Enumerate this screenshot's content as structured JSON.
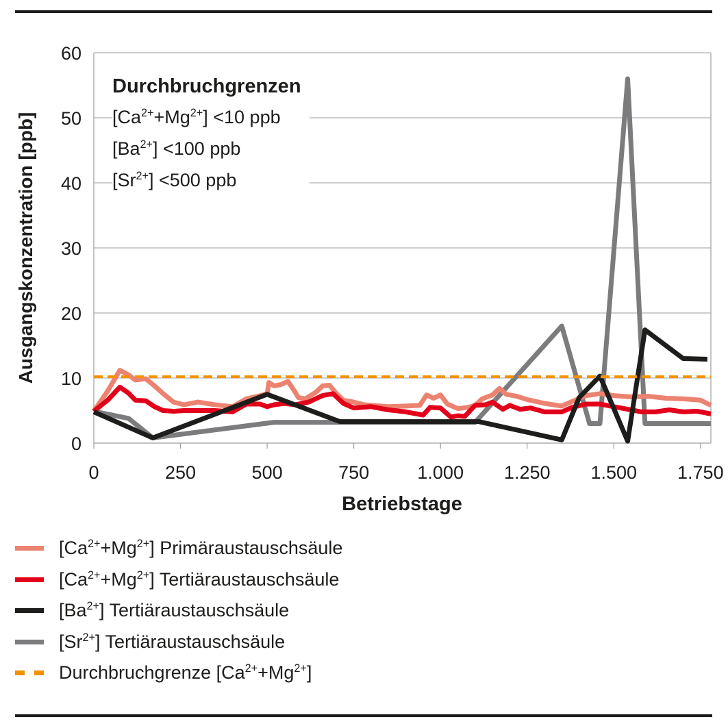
{
  "chart_data": {
    "type": "line",
    "xlabel": "Betriebstage",
    "ylabel": "Ausgangskonzentration [ppb]",
    "xlim": [
      0,
      1780
    ],
    "ylim": [
      0,
      60
    ],
    "x_ticks": [
      0,
      250,
      500,
      750,
      1000,
      1250,
      1500,
      1750
    ],
    "x_tick_labels": [
      "0",
      "250",
      "500",
      "750",
      "1.000",
      "1.250",
      "1.500",
      "1.750"
    ],
    "y_ticks": [
      0,
      10,
      20,
      30,
      40,
      50,
      60
    ],
    "y_tick_labels": [
      "0",
      "10",
      "20",
      "30",
      "40",
      "50",
      "60"
    ],
    "grid": "horizontal",
    "annotation": {
      "title": "Durchbruchgrenzen",
      "lines": [
        {
          "pre": "[Ca",
          "sup1": "2+",
          "mid": "+Mg",
          "sup2": "2+",
          "post": "] <10 ppb"
        },
        {
          "pre": "[Ba",
          "sup1": "2+",
          "mid": "",
          "sup2": "",
          "post": "] <100 ppb"
        },
        {
          "pre": "[Sr",
          "sup1": "2+",
          "mid": "",
          "sup2": "",
          "post": "] <500 ppb"
        }
      ]
    },
    "legend_position": "bottom",
    "series": [
      {
        "name": "[Ca2+ +Mg2+] Primäraustauschsäule",
        "legend": {
          "pre": "[Ca",
          "sup1": "2+",
          "mid": "+Mg",
          "sup2": "2+",
          "post": "] Primäraustauschsäule"
        },
        "color": "#ec8270",
        "style": "solid",
        "x": [
          0,
          40,
          75,
          100,
          120,
          150,
          175,
          200,
          230,
          260,
          300,
          350,
          400,
          440,
          480,
          500,
          505,
          520,
          540,
          560,
          580,
          590,
          610,
          640,
          660,
          680,
          700,
          720,
          750,
          780,
          800,
          850,
          900,
          940,
          960,
          980,
          1000,
          1020,
          1050,
          1080,
          1100,
          1120,
          1150,
          1170,
          1190,
          1220,
          1250,
          1300,
          1350,
          1380,
          1420,
          1460,
          1500,
          1550,
          1600,
          1650,
          1700,
          1750,
          1780
        ],
        "y": [
          4.9,
          8.0,
          11.2,
          10.5,
          9.7,
          9.9,
          8.8,
          7.6,
          6.3,
          5.9,
          6.3,
          5.9,
          5.6,
          6.8,
          7.3,
          7.6,
          9.3,
          8.8,
          9.0,
          9.5,
          7.9,
          7.0,
          6.8,
          7.8,
          8.8,
          8.9,
          7.6,
          6.6,
          6.3,
          5.9,
          5.8,
          5.6,
          5.7,
          5.8,
          7.4,
          6.9,
          7.4,
          6.0,
          5.3,
          5.5,
          5.8,
          6.8,
          7.4,
          8.4,
          7.5,
          7.2,
          6.7,
          6.1,
          5.7,
          6.4,
          7.3,
          7.6,
          7.3,
          7.1,
          7.2,
          6.9,
          6.8,
          6.6,
          5.8
        ]
      },
      {
        "name": "[Ca2+ +Mg2+] Tertiäraustauschsäule",
        "legend": {
          "pre": "[Ca",
          "sup1": "2+",
          "mid": "+Mg",
          "sup2": "2+",
          "post": "] Tertiäraustauschsäule"
        },
        "color": "#e2001a",
        "style": "solid",
        "x": [
          0,
          40,
          75,
          100,
          120,
          150,
          175,
          200,
          230,
          260,
          300,
          350,
          400,
          440,
          480,
          500,
          520,
          550,
          580,
          620,
          660,
          690,
          720,
          750,
          800,
          850,
          900,
          950,
          970,
          1000,
          1030,
          1050,
          1070,
          1100,
          1130,
          1150,
          1180,
          1200,
          1230,
          1260,
          1300,
          1350,
          1380,
          1420,
          1460,
          1500,
          1540,
          1580,
          1620,
          1660,
          1700,
          1740,
          1780
        ],
        "y": [
          4.9,
          6.6,
          8.6,
          7.7,
          6.6,
          6.5,
          5.6,
          5.0,
          4.9,
          5.0,
          5.0,
          5.0,
          4.8,
          6.0,
          6.0,
          5.6,
          5.9,
          6.1,
          5.9,
          6.3,
          7.3,
          7.6,
          6.1,
          5.4,
          5.6,
          5.1,
          4.8,
          4.3,
          5.5,
          5.4,
          4.0,
          4.2,
          4.1,
          5.8,
          5.9,
          6.3,
          5.2,
          5.8,
          5.2,
          5.4,
          4.8,
          4.8,
          5.5,
          6.0,
          6.0,
          5.6,
          5.2,
          4.8,
          4.8,
          5.1,
          4.8,
          4.9,
          4.5
        ]
      },
      {
        "name": "[Ba2+] Tertiäraustauschsäule",
        "legend": {
          "pre": "[Ba",
          "sup1": "2+",
          "mid": "",
          "sup2": "",
          "post": "] Tertiäraustauschsäule"
        },
        "color": "#1d1d1b",
        "style": "solid",
        "x": [
          0,
          170,
          500,
          710,
          1110,
          1350,
          1400,
          1460,
          1540,
          1590,
          1700,
          1770
        ],
        "y": [
          4.8,
          0.8,
          7.5,
          3.3,
          3.3,
          0.5,
          7.0,
          10.3,
          0.3,
          17.4,
          13.0,
          12.9
        ]
      },
      {
        "name": "[Sr2+] Tertiäraustauschsäule",
        "legend": {
          "pre": "[Sr",
          "sup1": "2+",
          "mid": "",
          "sup2": "",
          "post": "] Tertiäraustauschsäule"
        },
        "color": "#7c7b7e",
        "style": "solid",
        "x": [
          0,
          100,
          170,
          520,
          710,
          1100,
          1350,
          1430,
          1460,
          1540,
          1590,
          1780
        ],
        "y": [
          4.9,
          3.8,
          0.8,
          3.2,
          3.2,
          3.2,
          18.0,
          3.0,
          3.0,
          56.0,
          3.0,
          3.0
        ]
      },
      {
        "name": "Durchbruchgrenze [Ca2+ +Mg2+]",
        "legend": {
          "pre": "Durchbruchgrenze [Ca",
          "sup1": "2+",
          "mid": "+Mg",
          "sup2": "2+",
          "post": "]"
        },
        "color": "#f39200",
        "style": "dashed",
        "x": [
          0,
          1780
        ],
        "y": [
          10.2,
          10.2
        ]
      }
    ]
  }
}
